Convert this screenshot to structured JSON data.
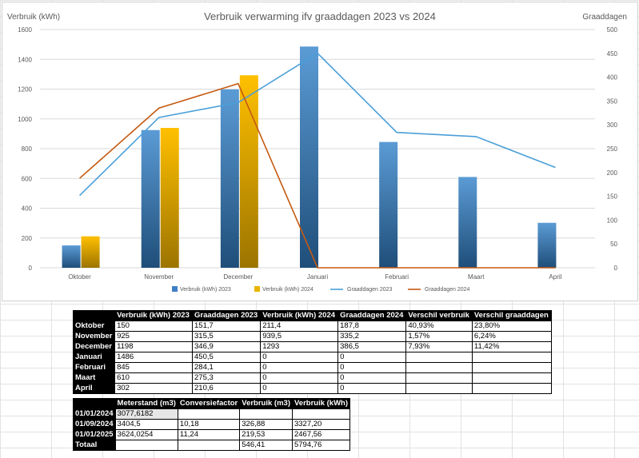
{
  "chart_data": {
    "type": "bar",
    "title": "Verbruik verwarming ifv graaddagen 2023 vs 2024",
    "ylabel": "Verbruik (kWh)",
    "y2label": "Graaddagen",
    "categories": [
      "Oktober",
      "November",
      "December",
      "Januari",
      "Februari",
      "Maart",
      "April"
    ],
    "ylim": [
      0,
      1600
    ],
    "y2lim": [
      0,
      500
    ],
    "yticks": [
      "0",
      "200",
      "400",
      "600",
      "800",
      "1000",
      "1200",
      "1400",
      "1600"
    ],
    "y2ticks": [
      "0",
      "50",
      "100",
      "150",
      "200",
      "250",
      "300",
      "350",
      "400",
      "450",
      "500"
    ],
    "legend_position": "bottom",
    "series": [
      {
        "name": "Verbruik (kWh) 2023",
        "type": "bar",
        "axis": "left",
        "color": "#3f7fc6",
        "values": [
          150,
          925,
          1198,
          1486,
          845,
          610,
          302
        ]
      },
      {
        "name": "Verbruik (kWh) 2024",
        "type": "bar",
        "axis": "left",
        "color": "#e7b400",
        "values": [
          211.4,
          939.5,
          1293,
          0,
          0,
          0,
          0
        ]
      },
      {
        "name": "Graaddagen 2023",
        "type": "line",
        "axis": "right",
        "color": "#4a9fd8",
        "values": [
          151.7,
          315.5,
          346.9,
          450.5,
          284.1,
          275.3,
          210.6
        ]
      },
      {
        "name": "Graaddagen 2024",
        "type": "line",
        "axis": "right",
        "color": "#c55a11",
        "values": [
          187.8,
          335.2,
          386.5,
          0,
          0,
          0,
          0
        ]
      }
    ]
  },
  "table1": {
    "headers": [
      "",
      "Verbruik (kWh) 2023",
      "Graaddagen 2023",
      "Verbruik (kWh) 2024",
      "Graaddagen 2024",
      "Verschil verbruik",
      "Verschil graaddagen"
    ],
    "rows": [
      [
        "Oktober",
        "150",
        "151,7",
        "211,4",
        "187,8",
        "40,93%",
        "23,80%"
      ],
      [
        "November",
        "925",
        "315,5",
        "939,5",
        "335,2",
        "1,57%",
        "6,24%"
      ],
      [
        "December",
        "1198",
        "346,9",
        "1293",
        "386,5",
        "7,93%",
        "11,42%"
      ],
      [
        "Januari",
        "1486",
        "450,5",
        "0",
        "0",
        "",
        ""
      ],
      [
        "Februari",
        "845",
        "284,1",
        "0",
        "0",
        "",
        ""
      ],
      [
        "Maart",
        "610",
        "275,3",
        "0",
        "0",
        "",
        ""
      ],
      [
        "April",
        "302",
        "210,6",
        "0",
        "0",
        "",
        ""
      ]
    ]
  },
  "table2": {
    "headers": [
      "",
      "Meterstand (m3)",
      "Conversiefactor",
      "Verbruik (m3)",
      "Verbruik (kWh)"
    ],
    "rows": [
      [
        "01/01/2024",
        "3077,6182",
        "",
        "",
        ""
      ],
      [
        "01/09/2024",
        "3404,5",
        "10,18",
        "326,88",
        "3327,20"
      ],
      [
        "01/01/2025",
        "3624,0254",
        "11,24",
        "219,53",
        "2467,56"
      ],
      [
        "Totaal",
        "",
        "",
        "546,41",
        "5794,76"
      ]
    ]
  }
}
